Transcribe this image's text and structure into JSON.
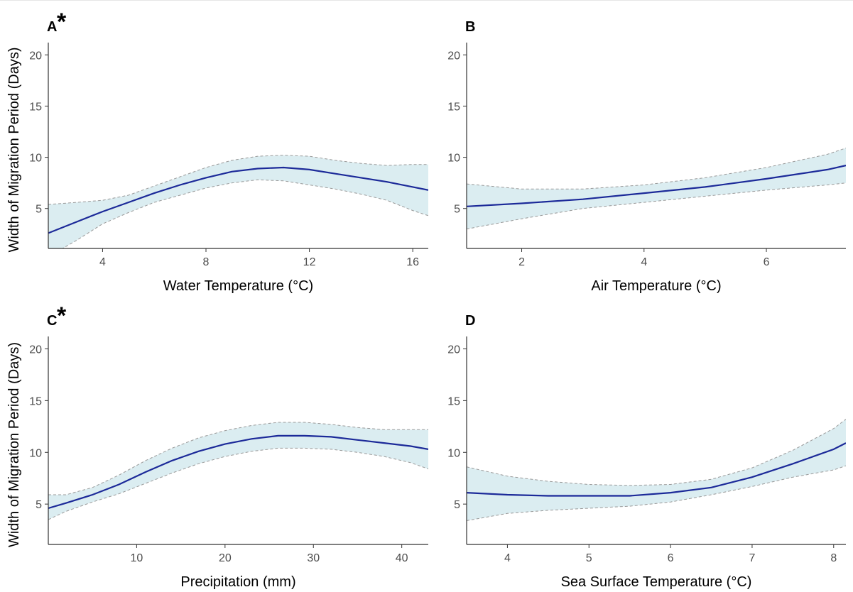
{
  "y_axis_title": "Width of Migration Period (Days)",
  "chart_data": [
    {
      "type": "line",
      "panel_label": "A",
      "significance_marker": "*",
      "xlabel": "Water Temperature (°C)",
      "ylabel": "Width of Migration Period (Days)",
      "xlim": [
        1.9,
        16.6
      ],
      "ylim": [
        1.1,
        21.2
      ],
      "xticks": [
        4,
        8,
        12,
        16
      ],
      "yticks": [
        5,
        10,
        15,
        20
      ],
      "x": [
        1.9,
        3.0,
        4.0,
        5.0,
        6.0,
        7.0,
        8.0,
        9.0,
        10.0,
        11.0,
        12.0,
        13.0,
        14.0,
        15.0,
        16.0,
        16.6
      ],
      "fit": [
        2.6,
        3.7,
        4.7,
        5.6,
        6.5,
        7.3,
        8.0,
        8.6,
        8.9,
        9.0,
        8.8,
        8.4,
        8.0,
        7.6,
        7.1,
        6.8
      ],
      "lower": [
        0.3,
        1.9,
        3.5,
        4.6,
        5.6,
        6.3,
        7.0,
        7.5,
        7.8,
        7.7,
        7.3,
        6.9,
        6.4,
        5.8,
        4.8,
        4.3
      ],
      "upper": [
        5.4,
        5.6,
        5.8,
        6.3,
        7.2,
        8.1,
        9.0,
        9.7,
        10.1,
        10.2,
        10.1,
        9.7,
        9.4,
        9.2,
        9.3,
        9.3
      ],
      "series": [
        {
          "name": "",
          "values": "fit"
        }
      ],
      "colors": {
        "line": "#1c2a99",
        "band": "#dbedf1",
        "band_border": "#999999",
        "axis": "#333333"
      },
      "grid": false
    },
    {
      "type": "line",
      "panel_label": "B",
      "significance_marker": "",
      "xlabel": "Air Temperature (°C)",
      "ylabel": "",
      "xlim": [
        1.1,
        7.3
      ],
      "ylim": [
        1.1,
        21.2
      ],
      "xticks": [
        2,
        4,
        6
      ],
      "yticks": [
        5,
        10,
        15,
        20
      ],
      "x": [
        1.1,
        2.0,
        3.0,
        4.0,
        5.0,
        6.0,
        7.0,
        7.3
      ],
      "fit": [
        5.2,
        5.5,
        5.9,
        6.5,
        7.1,
        7.9,
        8.8,
        9.2
      ],
      "lower": [
        3.0,
        4.0,
        5.0,
        5.6,
        6.2,
        6.8,
        7.3,
        7.5
      ],
      "upper": [
        7.4,
        6.9,
        6.9,
        7.3,
        8.0,
        9.0,
        10.3,
        10.9
      ],
      "series": [
        {
          "name": "",
          "values": "fit"
        }
      ],
      "colors": {
        "line": "#1c2a99",
        "band": "#dbedf1",
        "band_border": "#999999",
        "axis": "#333333"
      },
      "grid": false
    },
    {
      "type": "line",
      "panel_label": "C",
      "significance_marker": "*",
      "xlabel": "Precipitation (mm)",
      "ylabel": "Width of Migration Period (Days)",
      "xlim": [
        0,
        43
      ],
      "ylim": [
        1.1,
        21.2
      ],
      "xticks": [
        10,
        20,
        30,
        40
      ],
      "yticks": [
        5,
        10,
        15,
        20
      ],
      "x": [
        0,
        2,
        5,
        8,
        11,
        14,
        17,
        20,
        23,
        26,
        29,
        32,
        35,
        38,
        41,
        43
      ],
      "fit": [
        4.6,
        5.1,
        5.9,
        6.9,
        8.1,
        9.2,
        10.1,
        10.8,
        11.3,
        11.6,
        11.6,
        11.5,
        11.2,
        10.9,
        10.6,
        10.3
      ],
      "lower": [
        3.5,
        4.3,
        5.2,
        6.0,
        7.0,
        8.0,
        8.9,
        9.6,
        10.1,
        10.4,
        10.4,
        10.3,
        10.0,
        9.6,
        9.0,
        8.4
      ],
      "upper": [
        5.9,
        5.9,
        6.6,
        7.8,
        9.2,
        10.4,
        11.4,
        12.1,
        12.6,
        12.9,
        12.9,
        12.7,
        12.4,
        12.2,
        12.2,
        12.2
      ],
      "series": [
        {
          "name": "",
          "values": "fit"
        }
      ],
      "colors": {
        "line": "#1c2a99",
        "band": "#dbedf1",
        "band_border": "#999999",
        "axis": "#333333"
      },
      "grid": false
    },
    {
      "type": "line",
      "panel_label": "D",
      "significance_marker": "",
      "xlabel": "Sea Surface Temperature (°C)",
      "ylabel": "",
      "xlim": [
        3.5,
        8.15
      ],
      "ylim": [
        1.1,
        21.2
      ],
      "xticks": [
        4,
        5,
        6,
        7,
        8
      ],
      "yticks": [
        5,
        10,
        15,
        20
      ],
      "x": [
        3.5,
        4.0,
        4.5,
        5.0,
        5.5,
        6.0,
        6.5,
        7.0,
        7.5,
        8.0,
        8.15
      ],
      "fit": [
        6.1,
        5.9,
        5.8,
        5.8,
        5.8,
        6.1,
        6.6,
        7.6,
        8.9,
        10.3,
        10.9
      ],
      "lower": [
        3.4,
        4.1,
        4.4,
        4.6,
        4.8,
        5.2,
        5.9,
        6.7,
        7.6,
        8.3,
        8.7
      ],
      "upper": [
        8.6,
        7.7,
        7.2,
        6.9,
        6.8,
        6.9,
        7.4,
        8.5,
        10.2,
        12.3,
        13.2
      ],
      "series": [
        {
          "name": "",
          "values": "fit"
        }
      ],
      "colors": {
        "line": "#1c2a99",
        "band": "#dbedf1",
        "band_border": "#999999",
        "axis": "#333333"
      },
      "grid": false
    }
  ]
}
